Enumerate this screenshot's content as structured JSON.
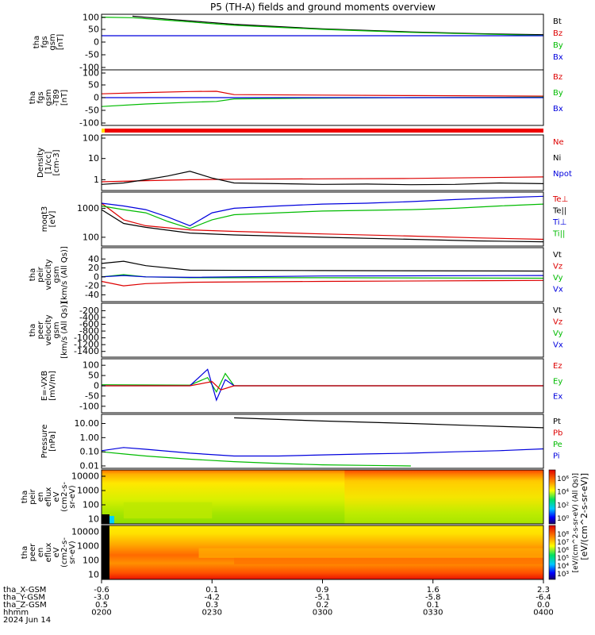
{
  "chart_data": {
    "type": "line",
    "title": "P5 (TH-A) fields and ground moments overview",
    "panels": [
      {
        "id": "fgs_gsm",
        "ylabel_lines": [
          "tha",
          "fgs",
          "gsm",
          "[nT]"
        ],
        "yticks": [
          "100",
          "50",
          "0",
          "-50",
          "-100"
        ],
        "ylim": [
          -100,
          100
        ],
        "scale": "linear",
        "legend": [
          {
            "name": "Bt",
            "color": "#000000"
          },
          {
            "name": "Bz",
            "color": "#dd0000"
          },
          {
            "name": "By",
            "color": "#00bb00"
          },
          {
            "name": "Bx",
            "color": "#0000dd"
          }
        ],
        "series": [
          {
            "name": "Bt",
            "x": [
              0.07,
              0.15,
              0.3,
              0.5,
              0.7,
              0.85,
              1.0
            ],
            "y": [
              102,
              90,
              70,
              52,
              40,
              33,
              29
            ]
          },
          {
            "name": "By",
            "x": [
              0.0,
              0.07,
              0.15,
              0.3,
              0.5,
              0.7,
              0.85,
              1.0
            ],
            "y": [
              98,
              96,
              86,
              66,
              50,
              38,
              32,
              26
            ]
          },
          {
            "name": "Bx",
            "x": [
              0.0,
              0.5,
              1.0
            ],
            "y": [
              25,
              25,
              25
            ]
          }
        ]
      },
      {
        "id": "fgs_gsm_model",
        "ylabel_lines": [
          "tha",
          "fgs",
          "gsm",
          "-T89",
          "[nT]"
        ],
        "yticks": [
          "100",
          "50",
          "0",
          "-50",
          "-100"
        ],
        "ylim": [
          -100,
          100
        ],
        "scale": "linear",
        "legend": [
          {
            "name": "Bz",
            "color": "#dd0000"
          },
          {
            "name": "By",
            "color": "#00bb00"
          },
          {
            "name": "Bx",
            "color": "#0000dd"
          }
        ],
        "series": [
          {
            "name": "Bz",
            "x": [
              0.0,
              0.1,
              0.2,
              0.26,
              0.3,
              0.5,
              0.7,
              1.0
            ],
            "y": [
              15,
              20,
              24,
              25,
              12,
              10,
              8,
              6
            ]
          },
          {
            "name": "By",
            "x": [
              0.0,
              0.1,
              0.2,
              0.26,
              0.3,
              0.5,
              0.7,
              1.0
            ],
            "y": [
              -35,
              -25,
              -18,
              -15,
              -5,
              -2,
              0,
              2
            ]
          },
          {
            "name": "Bx",
            "x": [
              0.0,
              0.5,
              1.0
            ],
            "y": [
              0,
              0,
              0
            ]
          }
        ]
      },
      {
        "id": "density",
        "ylabel_lines": [
          "Density",
          "[1/cc]",
          "[cm-3]"
        ],
        "yticks": [
          "100",
          "10",
          "1"
        ],
        "ylim": [
          0.4,
          100
        ],
        "scale": "log",
        "legend": [
          {
            "name": "Ne",
            "color": "#dd0000"
          },
          {
            "name": "Ni",
            "color": "#000000"
          },
          {
            "name": "Npot",
            "color": "#0000dd"
          }
        ],
        "series": [
          {
            "name": "Ne",
            "x": [
              0.0,
              0.1,
              0.2,
              0.3,
              0.5,
              0.7,
              0.85,
              1.0
            ],
            "y": [
              0.8,
              0.9,
              1.0,
              1.05,
              1.1,
              1.15,
              1.25,
              1.35
            ]
          },
          {
            "name": "Ni",
            "x": [
              0.0,
              0.05,
              0.1,
              0.15,
              0.2,
              0.25,
              0.3,
              0.4,
              0.5,
              0.6,
              0.7,
              0.8,
              0.9,
              1.0
            ],
            "y": [
              0.6,
              0.7,
              1.0,
              1.5,
              2.5,
              1.2,
              0.7,
              0.65,
              0.6,
              0.62,
              0.58,
              0.6,
              0.7,
              0.65
            ]
          }
        ]
      },
      {
        "id": "temperature",
        "ylabel_lines": [
          "moqt3",
          "[eV]"
        ],
        "yticks": [
          "1000",
          "100"
        ],
        "ylim": [
          60,
          3000
        ],
        "scale": "log",
        "legend": [
          {
            "name": "Te⊥",
            "color": "#dd0000"
          },
          {
            "name": "Te||",
            "color": "#000000"
          },
          {
            "name": "Ti⊥",
            "color": "#0000dd"
          },
          {
            "name": "Ti||",
            "color": "#00bb00"
          }
        ],
        "series": [
          {
            "name": "Te⊥",
            "x": [
              0.0,
              0.05,
              0.1,
              0.2,
              0.3,
              0.5,
              0.7,
              0.85,
              1.0
            ],
            "y": [
              1500,
              400,
              250,
              180,
              160,
              130,
              110,
              95,
              85
            ]
          },
          {
            "name": "Te||",
            "x": [
              0.0,
              0.05,
              0.1,
              0.2,
              0.3,
              0.5,
              0.7,
              0.85,
              1.0
            ],
            "y": [
              900,
              300,
              220,
              140,
              120,
              100,
              85,
              75,
              70
            ]
          },
          {
            "name": "Ti⊥",
            "x": [
              0.0,
              0.05,
              0.1,
              0.15,
              0.2,
              0.25,
              0.3,
              0.4,
              0.5,
              0.6,
              0.7,
              0.8,
              0.9,
              1.0
            ],
            "y": [
              1500,
              1200,
              900,
              500,
              250,
              700,
              1000,
              1200,
              1400,
              1500,
              1700,
              2000,
              2300,
              2600
            ]
          },
          {
            "name": "Ti||",
            "x": [
              0.0,
              0.05,
              0.1,
              0.15,
              0.2,
              0.25,
              0.3,
              0.4,
              0.5,
              0.6,
              0.7,
              0.8,
              0.9,
              1.0
            ],
            "y": [
              1200,
              900,
              700,
              350,
              200,
              400,
              600,
              700,
              800,
              850,
              900,
              1000,
              1200,
              1400
            ]
          }
        ]
      },
      {
        "id": "peir_velocity",
        "ylabel_lines": [
          "tha",
          "peir",
          "velocity",
          "gsm",
          "[km/s (All Qs)]"
        ],
        "yticks": [
          "40",
          "20",
          "0",
          "-20",
          "-40"
        ],
        "ylim": [
          -50,
          60
        ],
        "scale": "linear",
        "legend": [
          {
            "name": "Vt",
            "color": "#000000"
          },
          {
            "name": "Vz",
            "color": "#dd0000"
          },
          {
            "name": "Vy",
            "color": "#00bb00"
          },
          {
            "name": "Vx",
            "color": "#0000dd"
          }
        ],
        "series": [
          {
            "name": "Vt",
            "x": [
              0.0,
              0.05,
              0.1,
              0.2,
              0.5,
              1.0
            ],
            "y": [
              30,
              35,
              25,
              15,
              14,
              13
            ]
          },
          {
            "name": "Vy",
            "x": [
              0.0,
              0.05,
              0.1,
              0.2,
              0.5,
              1.0
            ],
            "y": [
              0,
              5,
              0,
              -2,
              -2,
              -3
            ]
          },
          {
            "name": "Vx",
            "x": [
              0.0,
              0.05,
              0.1,
              0.2,
              0.5,
              1.0
            ],
            "y": [
              0,
              3,
              0,
              -1,
              2,
              3
            ]
          },
          {
            "name": "Vz",
            "x": [
              0.0,
              0.05,
              0.1,
              0.2,
              0.5,
              1.0
            ],
            "y": [
              -10,
              -20,
              -15,
              -12,
              -10,
              -8
            ]
          }
        ]
      },
      {
        "id": "peer_velocity",
        "ylabel_lines": [
          "tha",
          "peer",
          "velocity",
          "gsm",
          "[km/s (All Qs)]"
        ],
        "yticks": [
          "-200",
          "-400",
          "-600",
          "-800",
          "-1000",
          "-1200",
          "-1400"
        ],
        "ylim": [
          -1500,
          -50
        ],
        "scale": "linear",
        "legend": [
          {
            "name": "Vt",
            "color": "#000000"
          },
          {
            "name": "Vz",
            "color": "#dd0000"
          },
          {
            "name": "Vy",
            "color": "#00bb00"
          },
          {
            "name": "Vx",
            "color": "#0000dd"
          }
        ],
        "series": []
      },
      {
        "id": "efield",
        "ylabel_lines": [
          "E=-VXB",
          "[mV/m]"
        ],
        "yticks": [
          "100",
          "50",
          "0",
          "-50",
          "-100"
        ],
        "ylim": [
          -120,
          120
        ],
        "scale": "linear",
        "legend": [
          {
            "name": "Ez",
            "color": "#dd0000"
          },
          {
            "name": "Ey",
            "color": "#00bb00"
          },
          {
            "name": "Ex",
            "color": "#0000dd"
          }
        ],
        "series": [
          {
            "name": "Ey",
            "x": [
              0.0,
              0.2,
              0.24,
              0.26,
              0.28,
              0.3,
              0.5,
              1.0
            ],
            "y": [
              5,
              3,
              40,
              -30,
              60,
              0,
              0,
              0
            ]
          },
          {
            "name": "Ex",
            "x": [
              0.0,
              0.2,
              0.24,
              0.26,
              0.28,
              0.3,
              0.5,
              1.0
            ],
            "y": [
              0,
              0,
              80,
              -70,
              30,
              0,
              0,
              0
            ]
          },
          {
            "name": "Ez",
            "x": [
              0.0,
              0.2,
              0.25,
              0.27,
              0.3,
              0.5,
              1.0
            ],
            "y": [
              0,
              0,
              20,
              -20,
              0,
              0,
              0
            ]
          }
        ]
      },
      {
        "id": "pressure",
        "ylabel_lines": [
          "Pressure",
          "[nPa]"
        ],
        "yticks": [
          "10.00",
          "1.00",
          "0.10",
          "0.01"
        ],
        "ylim": [
          0.01,
          30
        ],
        "scale": "log",
        "legend": [
          {
            "name": "Pt",
            "color": "#000000"
          },
          {
            "name": "Pb",
            "color": "#dd0000"
          },
          {
            "name": "Pe",
            "color": "#00bb00"
          },
          {
            "name": "Pi",
            "color": "#0000dd"
          }
        ],
        "series": [
          {
            "name": "Pt",
            "x": [
              0.3,
              0.5,
              0.7,
              0.85,
              1.0
            ],
            "y": [
              25,
              15,
              10,
              7,
              5
            ]
          },
          {
            "name": "Pi",
            "x": [
              0.0,
              0.05,
              0.1,
              0.2,
              0.3,
              0.4,
              0.5,
              0.6,
              0.7,
              0.8,
              0.9,
              1.0
            ],
            "y": [
              0.12,
              0.2,
              0.15,
              0.08,
              0.05,
              0.05,
              0.06,
              0.07,
              0.08,
              0.1,
              0.12,
              0.16
            ]
          },
          {
            "name": "Pe",
            "x": [
              0.0,
              0.05,
              0.1,
              0.2,
              0.3,
              0.4,
              0.5,
              0.6,
              0.7
            ],
            "y": [
              0.1,
              0.07,
              0.05,
              0.03,
              0.02,
              0.015,
              0.012,
              0.011,
              0.01
            ]
          }
        ]
      },
      {
        "id": "peir_spectrogram",
        "ylabel_lines": [
          "tha",
          "peir",
          "en",
          "eflux",
          "eV",
          "(cm2-s-",
          "sr-eV)"
        ],
        "yticks": [
          "10000",
          "1000",
          "100",
          "10"
        ],
        "scale": "log",
        "type": "heatmap",
        "colorbar_ticks": [
          "10⁶",
          "10⁴",
          "10²",
          "10⁰"
        ]
      },
      {
        "id": "peer_spectrogram",
        "ylabel_lines": [
          "tha",
          "peer",
          "en",
          "eflux",
          "eV",
          "(cm2-s-",
          "sr-eV)"
        ],
        "yticks": [
          "10000",
          "1000",
          "100",
          "10"
        ],
        "scale": "log",
        "type": "heatmap",
        "colorbar_ticks": [
          "10⁸",
          "10⁷",
          "10⁶",
          "10⁵",
          "10⁴",
          "10³"
        ]
      }
    ],
    "colorbar_label": "[eV/(cm^2-s-sr-eV)]",
    "colorbar_label_inner": "[eV/(cm^2-s-sr-eV) (All Qs)]",
    "xaxis": {
      "row_labels": [
        "tha_X-GSM",
        "tha_Y-GSM",
        "tha_Z-GSM",
        "hhmm",
        "2024 Jun 14"
      ],
      "columns": [
        {
          "x": 0.0,
          "values": [
            "-0.6",
            "-3.0",
            "0.5",
            "0200"
          ]
        },
        {
          "x": 0.25,
          "values": [
            "0.1",
            "-4.2",
            "0.3",
            "0230"
          ]
        },
        {
          "x": 0.5,
          "values": [
            "0.9",
            "-5.1",
            "0.2",
            "0300"
          ]
        },
        {
          "x": 0.75,
          "values": [
            "1.6",
            "-5.8",
            "0.1",
            "0330"
          ]
        },
        {
          "x": 1.0,
          "values": [
            "2.3",
            "-6.4",
            "0.0",
            "0400"
          ]
        }
      ]
    }
  }
}
